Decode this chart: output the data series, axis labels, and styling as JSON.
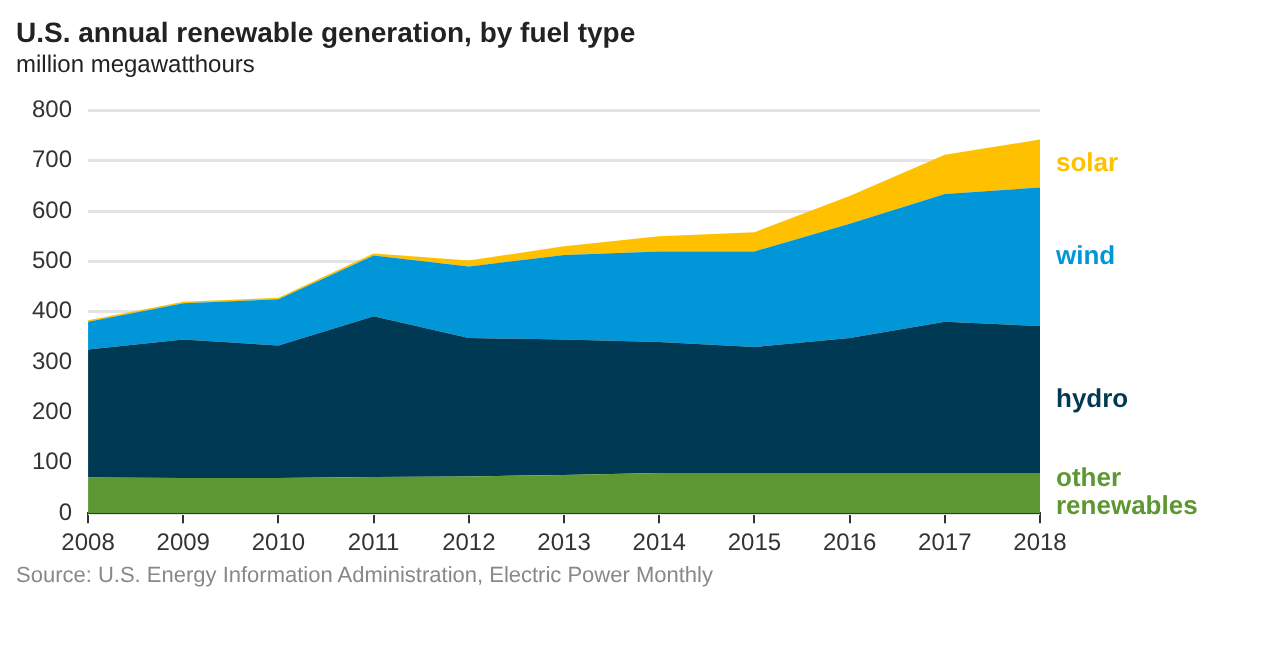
{
  "chart_data": {
    "type": "area",
    "title": "U.S. annual renewable generation, by fuel type",
    "subtitle": "million megawatthours",
    "stacked": true,
    "categories": [
      "2008",
      "2009",
      "2010",
      "2011",
      "2012",
      "2013",
      "2014",
      "2015",
      "2016",
      "2017",
      "2018"
    ],
    "series": [
      {
        "name": "other renewables",
        "color": "#5d9732",
        "values": [
          71,
          70,
          70,
          72,
          73,
          76,
          80,
          80,
          80,
          80,
          80
        ]
      },
      {
        "name": "hydro",
        "color": "#003953",
        "values": [
          254,
          275,
          263,
          319,
          275,
          269,
          260,
          250,
          268,
          300,
          292
        ]
      },
      {
        "name": "wind",
        "color": "#0096d7",
        "values": [
          55,
          72,
          92,
          121,
          142,
          168,
          180,
          190,
          227,
          254,
          275
        ]
      },
      {
        "name": "solar",
        "color": "#ffc000",
        "values": [
          3,
          3,
          3,
          4,
          12,
          17,
          30,
          38,
          55,
          78,
          95
        ]
      }
    ],
    "ylim": [
      0,
      800
    ],
    "yticks": [
      0,
      100,
      200,
      300,
      400,
      500,
      600,
      700,
      800
    ],
    "grid": "y",
    "legend": false,
    "annotations": [
      "Source: U.S. Energy Information Administration, Electric Power Monthly"
    ]
  }
}
